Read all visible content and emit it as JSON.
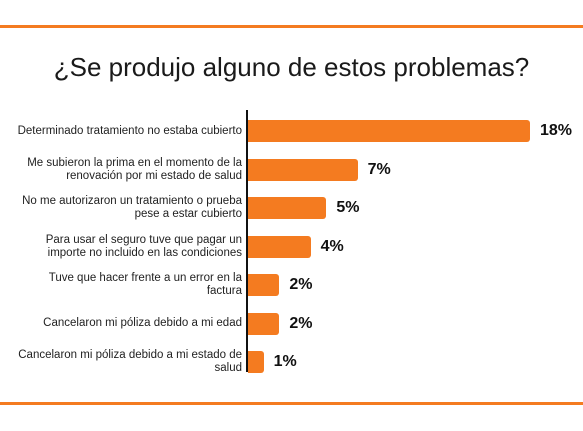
{
  "colors": {
    "accent": "#f47b20",
    "rule": "#f47b20"
  },
  "chart_data": {
    "type": "bar",
    "orientation": "horizontal",
    "title": "¿Se produjo alguno de estos problemas?",
    "categories": [
      "Determinado tratamiento no estaba cubierto",
      "Me subieron la prima en el momento de la renovación por mi estado de salud",
      "No me autorizaron un tratamiento o prueba pese a estar cubierto",
      "Para usar el seguro tuve que pagar un importe no incluido en las condiciones",
      "Tuve que hacer frente a un error en la factura",
      "Cancelaron mi póliza debido a mi edad",
      "Cancelaron mi póliza debido a mi estado de salud"
    ],
    "values": [
      18,
      7,
      5,
      4,
      2,
      2,
      1
    ],
    "value_labels": [
      "18%",
      "7%",
      "5%",
      "4%",
      "2%",
      "2%",
      "1%"
    ],
    "unit": "%"
  }
}
